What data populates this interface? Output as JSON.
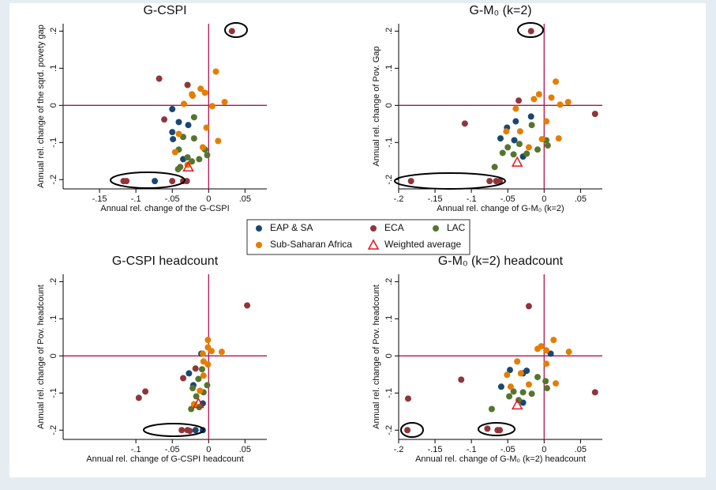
{
  "chart_data": [
    {
      "type": "scatter",
      "title": "G-CSPI",
      "x_label": "Annual rel. change of the G-CSPI",
      "y_label": "Annual rel. change of the sqrd. povety gap",
      "xlim": [
        -0.2,
        0.08
      ],
      "ylim": [
        -0.225,
        0.22
      ],
      "vline": 0,
      "hline": 0,
      "grid": false,
      "xticks": [
        {
          "value": -0.15,
          "label": "-.15"
        },
        {
          "value": -0.1,
          "label": "-.1"
        },
        {
          "value": -0.05,
          "label": "-.05"
        },
        0,
        {
          "value": 0.05,
          "label": ".05"
        }
      ],
      "yticks": [
        {
          "value": -0.2,
          "label": "-.2"
        },
        {
          "value": -0.1,
          "label": "-.1"
        },
        0,
        {
          "value": 0.1,
          "label": ".1"
        },
        {
          "value": 0.2,
          "label": ".2"
        }
      ],
      "series": [
        {
          "name": "EAP & SA",
          "color": "#1a476f",
          "marker": "circle",
          "x": [
            -0.05,
            -0.041,
            -0.028,
            -0.05,
            -0.049,
            -0.074,
            -0.035
          ],
          "values": [
            -0.01,
            -0.045,
            -0.053,
            -0.072,
            -0.091,
            -0.204,
            -0.145
          ]
        },
        {
          "name": "ECA",
          "color": "#90353b",
          "marker": "circle",
          "x": [
            -0.068,
            -0.029,
            0.032,
            -0.061,
            -0.117,
            -0.113,
            -0.05,
            -0.035,
            -0.03
          ],
          "values": [
            0.072,
            0.055,
            0.2,
            -0.038,
            -0.204,
            -0.204,
            -0.204,
            -0.204,
            -0.204
          ]
        },
        {
          "name": "LAC",
          "color": "#55752f",
          "marker": "circle",
          "x": [
            -0.02,
            -0.02,
            -0.035,
            -0.041,
            -0.042,
            -0.023,
            -0.013,
            -0.002,
            -0.005,
            -0.029,
            -0.039
          ],
          "values": [
            -0.032,
            -0.089,
            -0.085,
            -0.119,
            -0.172,
            -0.151,
            -0.145,
            -0.134,
            -0.119,
            -0.14,
            -0.166
          ]
        },
        {
          "name": "Sub-Saharan Africa",
          "color": "#e37e00",
          "marker": "circle",
          "x": [
            0.01,
            -0.011,
            -0.022,
            -0.034,
            0.022,
            0.005,
            -0.003,
            -0.023,
            -0.041,
            -0.046,
            0.013,
            -0.008,
            -0.005,
            -0.029
          ],
          "values": [
            0.091,
            0.045,
            0.026,
            0.004,
            0.009,
            -0.002,
            -0.06,
            0.03,
            -0.077,
            -0.126,
            -0.096,
            -0.113,
            0.034,
            -0.16
          ]
        },
        {
          "name": "Weighted average",
          "color": "#e8141c",
          "marker": "triangle",
          "x": [
            -0.028
          ],
          "values": [
            -0.166
          ]
        }
      ]
    },
    {
      "type": "scatter",
      "title": "G-M₀ (k=2)",
      "x_label": "Annual rel. change of G-M₀ (k=2)",
      "y_label": "Annual rel. change of Pov. Gap",
      "xlim": [
        -0.2,
        0.08
      ],
      "ylim": [
        -0.225,
        0.22
      ],
      "vline": 0,
      "hline": 0,
      "grid": false,
      "xticks": [
        {
          "value": -0.2,
          "label": "-.2"
        },
        {
          "value": -0.15,
          "label": "-.15"
        },
        {
          "value": -0.1,
          "label": "-.1"
        },
        {
          "value": -0.05,
          "label": "-.05"
        },
        0,
        {
          "value": 0.05,
          "label": ".05"
        }
      ],
      "yticks": [
        {
          "value": -0.2,
          "label": "-.2"
        },
        {
          "value": -0.1,
          "label": "-.1"
        },
        0,
        {
          "value": 0.1,
          "label": ".1"
        },
        {
          "value": 0.2,
          "label": ".2"
        }
      ],
      "series": [
        {
          "name": "EAP & SA",
          "color": "#1a476f",
          "marker": "circle",
          "x": [
            -0.018,
            -0.039,
            -0.051,
            -0.06,
            -0.029,
            -0.041
          ],
          "values": [
            -0.03,
            -0.043,
            -0.06,
            -0.089,
            -0.138,
            -0.094
          ]
        },
        {
          "name": "ECA",
          "color": "#90353b",
          "marker": "circle",
          "x": [
            -0.018,
            -0.035,
            -0.109,
            0.07,
            -0.183,
            -0.075,
            -0.066,
            -0.061
          ],
          "values": [
            0.2,
            0.013,
            -0.049,
            -0.023,
            -0.204,
            -0.204,
            -0.204,
            -0.204
          ]
        },
        {
          "name": "LAC",
          "color": "#55752f",
          "marker": "circle",
          "x": [
            -0.017,
            -0.05,
            -0.042,
            -0.024,
            0.003,
            0.005,
            -0.009,
            -0.068,
            -0.034,
            -0.057
          ],
          "values": [
            -0.053,
            -0.113,
            -0.132,
            -0.13,
            -0.094,
            -0.108,
            -0.119,
            -0.166,
            -0.104,
            -0.128
          ]
        },
        {
          "name": "Sub-Saharan Africa",
          "color": "#e37e00",
          "marker": "circle",
          "x": [
            0.016,
            -0.007,
            -0.014,
            0.01,
            0.022,
            0.033,
            -0.039,
            -0.052,
            -0.033,
            0.003,
            0.02,
            -0.003,
            -0.021
          ],
          "values": [
            0.064,
            0.03,
            0.017,
            0.021,
            0.002,
            0.009,
            -0.009,
            -0.07,
            -0.07,
            -0.043,
            -0.089,
            -0.091,
            -0.113
          ]
        },
        {
          "name": "Weighted average",
          "color": "#e8141c",
          "marker": "triangle",
          "x": [
            -0.037
          ],
          "values": [
            -0.153
          ]
        }
      ]
    },
    {
      "type": "scatter",
      "title": "G-CSPI headcount",
      "x_label": "Annual rel. change of G-CSPI headcount",
      "y_label": "Annual rel. change of Pov. headcount",
      "xlim": [
        -0.2,
        0.08
      ],
      "ylim": [
        -0.225,
        0.22
      ],
      "vline": 0,
      "hline": 0,
      "grid": false,
      "xticks": [
        {
          "value": -0.1,
          "label": "-.1"
        },
        {
          "value": -0.05,
          "label": "-.05"
        },
        0,
        {
          "value": 0.05,
          "label": ".05"
        }
      ],
      "yticks": [
        {
          "value": -0.2,
          "label": "-.2"
        },
        {
          "value": -0.1,
          "label": "-.1"
        },
        0,
        {
          "value": 0.1,
          "label": ".1"
        },
        {
          "value": 0.2,
          "label": ".2"
        }
      ],
      "series": [
        {
          "name": "EAP & SA",
          "color": "#1a476f",
          "marker": "circle",
          "x": [
            -0.01,
            -0.027,
            -0.021,
            -0.008,
            -0.008,
            -0.018
          ],
          "values": [
            0.006,
            -0.047,
            -0.079,
            -0.128,
            -0.2,
            -0.2
          ]
        },
        {
          "name": "ECA",
          "color": "#90353b",
          "marker": "circle",
          "x": [
            0.053,
            -0.087,
            -0.096,
            -0.018,
            -0.035,
            -0.037,
            -0.029,
            -0.026
          ],
          "values": [
            0.136,
            -0.096,
            -0.113,
            -0.034,
            -0.06,
            -0.2,
            -0.2,
            -0.202
          ]
        },
        {
          "name": "LAC",
          "color": "#55752f",
          "marker": "circle",
          "x": [
            -0.009,
            -0.002,
            -0.014,
            -0.017,
            -0.022,
            -0.007,
            -0.013,
            -0.024
          ],
          "values": [
            -0.036,
            -0.079,
            -0.062,
            -0.109,
            -0.087,
            -0.098,
            -0.138,
            -0.143
          ]
        },
        {
          "name": "Sub-Saharan Africa",
          "color": "#e37e00",
          "marker": "circle",
          "x": [
            -0.001,
            -0.001,
            0.004,
            0.018,
            -0.008,
            -0.007,
            -0.001,
            -0.007,
            -0.012,
            -0.02
          ],
          "values": [
            0.043,
            0.023,
            0.013,
            0.011,
            0.006,
            -0.015,
            -0.023,
            -0.053,
            -0.094,
            -0.13
          ]
        },
        {
          "name": "Weighted average",
          "color": "#e8141c",
          "marker": "triangle",
          "x": [
            -0.014
          ],
          "values": [
            -0.128
          ]
        }
      ]
    },
    {
      "type": "scatter",
      "title": "G-M₀ (k=2) headcount",
      "x_label": "Annual rel. change of G-M₀ (k=2) headcount",
      "y_label": "Annual rel. change of Pov. headcount",
      "xlim": [
        -0.2,
        0.08
      ],
      "ylim": [
        -0.225,
        0.22
      ],
      "vline": 0,
      "hline": 0,
      "grid": false,
      "xticks": [
        {
          "value": -0.2,
          "label": "-.2"
        },
        {
          "value": -0.15,
          "label": "-.15"
        },
        {
          "value": -0.1,
          "label": "-.1"
        },
        {
          "value": -0.05,
          "label": "-.05"
        },
        0,
        {
          "value": 0.05,
          "label": ".05"
        }
      ],
      "yticks": [
        {
          "value": -0.2,
          "label": "-.2"
        },
        {
          "value": -0.1,
          "label": "-.1"
        },
        0,
        {
          "value": 0.1,
          "label": ".1"
        },
        {
          "value": 0.2,
          "label": ".2"
        }
      ],
      "series": [
        {
          "name": "EAP & SA",
          "color": "#1a476f",
          "marker": "circle",
          "x": [
            0.009,
            -0.029,
            -0.024,
            -0.059,
            -0.029,
            -0.047
          ],
          "values": [
            0.006,
            -0.047,
            -0.04,
            -0.083,
            -0.126,
            -0.038
          ]
        },
        {
          "name": "ECA",
          "color": "#90353b",
          "marker": "circle",
          "x": [
            -0.021,
            -0.114,
            -0.187,
            0.07,
            -0.188,
            -0.078,
            -0.061,
            -0.064
          ],
          "values": [
            0.134,
            -0.064,
            -0.115,
            -0.098,
            -0.2,
            -0.196,
            -0.2,
            -0.2
          ]
        },
        {
          "name": "LAC",
          "color": "#55752f",
          "marker": "circle",
          "x": [
            -0.009,
            0.002,
            0.004,
            -0.017,
            -0.042,
            -0.048,
            -0.072,
            -0.035,
            -0.029
          ],
          "values": [
            -0.057,
            -0.068,
            -0.087,
            -0.102,
            -0.096,
            -0.109,
            -0.143,
            -0.119,
            -0.098
          ]
        },
        {
          "name": "Sub-Saharan Africa",
          "color": "#e37e00",
          "marker": "circle",
          "x": [
            0.013,
            -0.009,
            0.003,
            -0.004,
            0.034,
            -0.037,
            -0.051,
            -0.032,
            0.003,
            0.016,
            -0.021,
            -0.046
          ],
          "values": [
            0.043,
            0.019,
            0.015,
            0.026,
            0.011,
            -0.015,
            -0.051,
            -0.047,
            -0.021,
            -0.074,
            -0.077,
            -0.083
          ]
        },
        {
          "name": "Weighted average",
          "color": "#e8141c",
          "marker": "triangle",
          "x": [
            -0.037
          ],
          "values": [
            -0.132
          ]
        }
      ]
    }
  ]
}
